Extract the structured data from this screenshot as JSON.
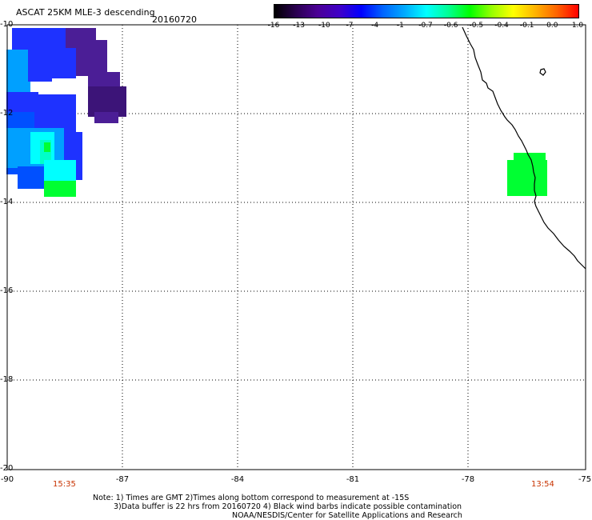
{
  "header": {
    "title": "ASCAT 25KM MLE-3 descending",
    "date": "20160720"
  },
  "colorbar": {
    "ticks": [
      "-16",
      "-13",
      "-10",
      "-7",
      "-4",
      "-1",
      "-0.7",
      "-0.6",
      "-0.5",
      "-0.4",
      "-0.1",
      "0.0",
      "1.0"
    ],
    "colors": [
      "#000000",
      "#2a0050",
      "#4b0096",
      "#3f00c8",
      "#0000ff",
      "#0064ff",
      "#00aaff",
      "#00ffff",
      "#00ff96",
      "#00ff00",
      "#96ff00",
      "#ffff00",
      "#ffb400",
      "#ff6400",
      "#ff0000"
    ]
  },
  "map": {
    "lat_labels": [
      "-10",
      "-12",
      "-14",
      "-16",
      "-18",
      "-20"
    ],
    "lon_labels": [
      "-90",
      "-87",
      "-84",
      "-81",
      "-78",
      "-75"
    ],
    "time_left": "15:35",
    "time_right": "13:54",
    "colors": {
      "purple": "#4b1e96",
      "purple_dark": "#3c1478",
      "blue": "#1e32ff",
      "blue_mid": "#0050ff",
      "sky": "#00a0ff",
      "cyan": "#00ffff",
      "aqua": "#00ffc8",
      "green": "#00ff32",
      "coast": "#000000"
    }
  },
  "footer": {
    "note_line1": "Note: 1) Times are GMT 2)Times along bottom correspond to measurement at -15S",
    "note_line2": "3)Data buffer is 22 hrs from 20160720 4) Black wind barbs indicate possible contamination",
    "credit": "NOAA/NESDIS/Center for Satellite Applications and Research"
  }
}
